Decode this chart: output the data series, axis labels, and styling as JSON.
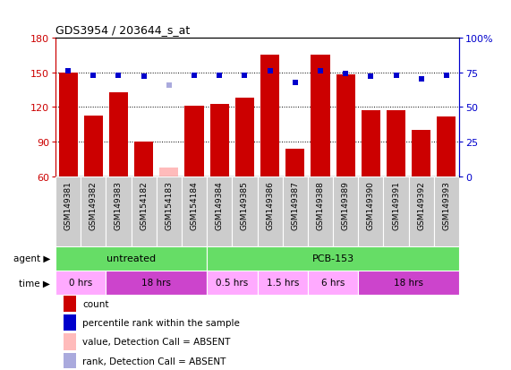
{
  "title": "GDS3954 / 203644_s_at",
  "samples": [
    "GSM149381",
    "GSM149382",
    "GSM149383",
    "GSM154182",
    "GSM154183",
    "GSM154184",
    "GSM149384",
    "GSM149385",
    "GSM149386",
    "GSM149387",
    "GSM149388",
    "GSM149389",
    "GSM149390",
    "GSM149391",
    "GSM149392",
    "GSM149393"
  ],
  "count_values": [
    150,
    113,
    133,
    90,
    68,
    121,
    123,
    128,
    165,
    84,
    165,
    148,
    117,
    117,
    100,
    112
  ],
  "count_absent": [
    false,
    false,
    false,
    false,
    true,
    false,
    false,
    false,
    false,
    false,
    false,
    false,
    false,
    false,
    false,
    false
  ],
  "percentile_values": [
    76,
    73,
    73,
    72,
    66,
    73,
    73,
    73,
    76,
    68,
    76,
    74,
    72,
    73,
    70,
    73
  ],
  "percentile_absent": [
    false,
    false,
    false,
    false,
    true,
    false,
    false,
    false,
    false,
    false,
    false,
    false,
    false,
    false,
    false,
    false
  ],
  "ylim_left": [
    60,
    180
  ],
  "ylim_right": [
    0,
    100
  ],
  "yticks_left": [
    60,
    90,
    120,
    150,
    180
  ],
  "yticks_right": [
    0,
    25,
    50,
    75,
    100
  ],
  "ytick_labels_right": [
    "0",
    "25",
    "50",
    "75",
    "100%"
  ],
  "grid_values": [
    90,
    120,
    150
  ],
  "bar_color_present": "#cc0000",
  "bar_color_absent": "#ffbbbb",
  "rank_color_present": "#0000cc",
  "rank_color_absent": "#aaaadd",
  "background_color": "#ffffff",
  "plot_bg_color": "#ffffff",
  "axis_color_left": "#cc0000",
  "axis_color_right": "#0000cc",
  "sample_bg_color": "#cccccc",
  "agent_color": "#66dd66",
  "time_color_light": "#ffaaff",
  "time_color_dark": "#cc44cc",
  "legend_items": [
    {
      "label": "count",
      "color": "#cc0000"
    },
    {
      "label": "percentile rank within the sample",
      "color": "#0000cc"
    },
    {
      "label": "value, Detection Call = ABSENT",
      "color": "#ffbbbb"
    },
    {
      "label": "rank, Detection Call = ABSENT",
      "color": "#aaaadd"
    }
  ],
  "agent_groups": [
    {
      "label": "untreated",
      "start": 0,
      "end": 5
    },
    {
      "label": "PCB-153",
      "start": 6,
      "end": 15
    }
  ],
  "time_groups": [
    {
      "label": "0 hrs",
      "start": 0,
      "end": 1,
      "dark": false
    },
    {
      "label": "18 hrs",
      "start": 2,
      "end": 5,
      "dark": true
    },
    {
      "label": "0.5 hrs",
      "start": 6,
      "end": 7,
      "dark": false
    },
    {
      "label": "1.5 hrs",
      "start": 8,
      "end": 9,
      "dark": false
    },
    {
      "label": "6 hrs",
      "start": 10,
      "end": 11,
      "dark": false
    },
    {
      "label": "18 hrs",
      "start": 12,
      "end": 15,
      "dark": true
    }
  ]
}
